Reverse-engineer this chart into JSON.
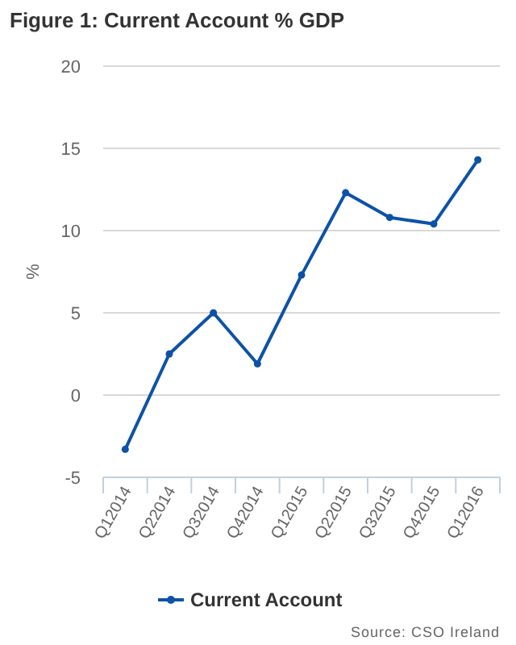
{
  "chart_data": {
    "type": "line",
    "title": "Figure 1: Current Account % GDP",
    "ylabel": "%",
    "categories": [
      "Q12014",
      "Q22014",
      "Q32014",
      "Q42014",
      "Q12015",
      "Q22015",
      "Q32015",
      "Q42015",
      "Q12016"
    ],
    "series": [
      {
        "name": "Current Account",
        "color": "#0d52a8",
        "values": [
          -3.3,
          2.5,
          5.0,
          1.9,
          7.3,
          12.3,
          10.8,
          10.4,
          14.3
        ]
      }
    ],
    "ylim": [
      -5,
      20
    ],
    "yticks": [
      -5,
      0,
      5,
      10,
      15,
      20
    ],
    "grid": "y",
    "legend": "bottom",
    "marker": "circle",
    "annotations": [
      "Source: CSO Ireland"
    ]
  }
}
